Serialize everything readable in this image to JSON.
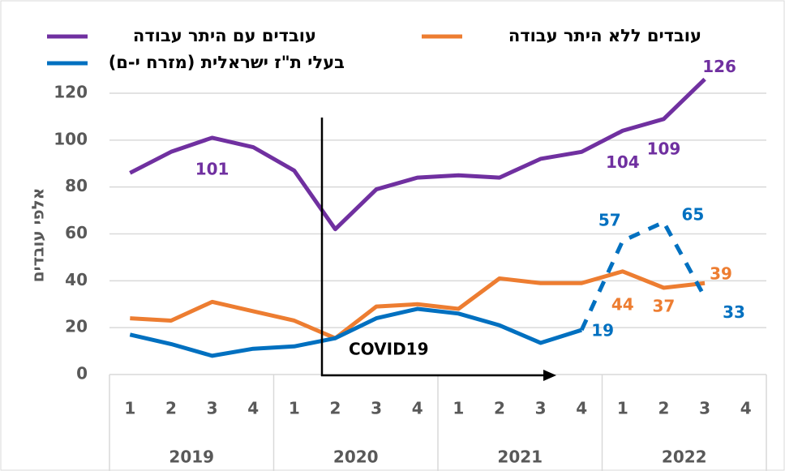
{
  "chart_data": {
    "type": "line",
    "y_axis_label": "אלפי עובדים",
    "annotation": "COVID19",
    "categories": [
      "1",
      "2",
      "3",
      "4",
      "1",
      "2",
      "3",
      "4",
      "1",
      "2",
      "3",
      "4",
      "1",
      "2",
      "3",
      "4"
    ],
    "years": [
      "2019",
      "2020",
      "2021",
      "2022"
    ],
    "ylim": [
      0,
      120
    ],
    "yticks": [
      0,
      20,
      40,
      60,
      80,
      100,
      120
    ],
    "grid": true,
    "series": [
      {
        "name": "עובדים עם היתר עבודה",
        "color": "#7030a0",
        "values": [
          86,
          95,
          101,
          97,
          87,
          62,
          79,
          84,
          85,
          84,
          92,
          95,
          104,
          109,
          126,
          null
        ],
        "value_labels": [
          null,
          null,
          "101",
          null,
          null,
          null,
          null,
          null,
          null,
          null,
          null,
          null,
          "104",
          "109",
          "126",
          null
        ]
      },
      {
        "name": "עובדים ללא היתר עבודה",
        "color": "#ed7d31",
        "values": [
          24,
          23,
          31,
          27,
          23,
          15.5,
          29,
          30,
          28,
          41,
          39,
          39,
          44,
          37,
          39,
          null
        ],
        "value_labels": [
          null,
          null,
          null,
          null,
          null,
          null,
          null,
          null,
          null,
          null,
          null,
          null,
          "44",
          "37",
          "39",
          null
        ]
      },
      {
        "name": "בעלי ת\"ז ישראלית (מזרח י-ם)",
        "color": "#0070c0",
        "values": [
          17,
          13,
          8,
          11,
          12,
          15.5,
          24,
          28,
          26,
          21,
          13.5,
          19,
          57,
          65,
          33,
          null
        ],
        "value_labels": [
          null,
          null,
          null,
          null,
          null,
          null,
          null,
          null,
          null,
          null,
          null,
          "19",
          "57",
          "65",
          "33",
          null
        ],
        "dash_from_index": 11
      }
    ]
  }
}
